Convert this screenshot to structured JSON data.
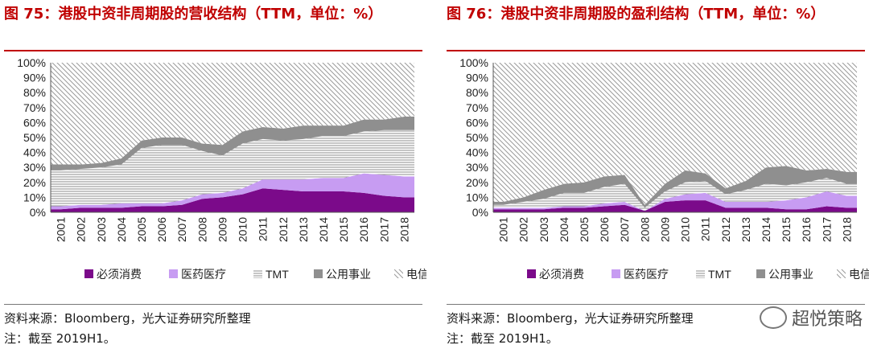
{
  "left": {
    "title": "图 75：港股中资非周期股的营收结构（TTM，单位：%）",
    "source": "资料来源：Bloomberg，光大证券研究所整理",
    "note": "注：截至 2019H1。"
  },
  "right": {
    "title": "图 76：港股中资非周期股的盈利结构（TTM，单位：%）",
    "source": "资料来源：Bloomberg，光大证券研究所整理",
    "note": "注：截至 2019H1。"
  },
  "watermark": "超悦策略",
  "colors": {
    "必须消费": "#7b0a8a",
    "医药医疗": "#c79cf2",
    "TMT": "#a6a6a6",
    "公用事业": "#8f8f8f",
    "电信": "#bdbdbd"
  },
  "chart_data": [
    {
      "type": "area",
      "stacked": true,
      "percent": true,
      "x": [
        "2001",
        "2002",
        "2003",
        "2004",
        "2005",
        "2006",
        "2007",
        "2008",
        "2009",
        "2010",
        "2011",
        "2012",
        "2013",
        "2014",
        "2015",
        "2016",
        "2017",
        "2018"
      ],
      "yticks": [
        "0%",
        "10%",
        "20%",
        "30%",
        "40%",
        "50%",
        "60%",
        "70%",
        "80%",
        "90%",
        "100%"
      ],
      "ylim": [
        0,
        100
      ],
      "legend_position": "bottom",
      "series": [
        {
          "name": "必须消费",
          "pattern": "solid",
          "values": [
            2,
            3,
            3,
            3,
            4,
            4,
            5,
            9,
            10,
            12,
            16,
            15,
            14,
            14,
            14,
            13,
            11,
            10
          ]
        },
        {
          "name": "医药医疗",
          "pattern": "solid",
          "values": [
            2,
            2,
            2,
            3,
            2,
            2,
            3,
            3,
            3,
            4,
            6,
            7,
            8,
            9,
            9,
            13,
            14,
            14
          ]
        },
        {
          "name": "TMT",
          "pattern": "hlines",
          "values": [
            24,
            24,
            25,
            26,
            37,
            39,
            37,
            29,
            25,
            30,
            27,
            26,
            27,
            28,
            28,
            28,
            30,
            31
          ]
        },
        {
          "name": "公用事业",
          "pattern": "solid",
          "values": [
            4,
            3,
            3,
            4,
            5,
            5,
            5,
            5,
            7,
            8,
            8,
            8,
            9,
            7,
            7,
            8,
            7,
            9
          ]
        },
        {
          "name": "电信",
          "pattern": "diag",
          "values": [
            68,
            68,
            67,
            64,
            52,
            50,
            50,
            54,
            55,
            46,
            43,
            44,
            42,
            42,
            42,
            38,
            38,
            36
          ]
        }
      ]
    },
    {
      "type": "area",
      "stacked": true,
      "percent": true,
      "x": [
        "2001",
        "2002",
        "2003",
        "2004",
        "2005",
        "2006",
        "2007",
        "2008",
        "2009",
        "2010",
        "2011",
        "2012",
        "2013",
        "2014",
        "2015",
        "2016",
        "2017",
        "2018"
      ],
      "yticks": [
        "0%",
        "10%",
        "20%",
        "30%",
        "40%",
        "50%",
        "60%",
        "70%",
        "80%",
        "90%",
        "100%"
      ],
      "ylim": [
        0,
        100
      ],
      "legend_position": "bottom",
      "series": [
        {
          "name": "必须消费",
          "pattern": "solid",
          "values": [
            2,
            2,
            2,
            3,
            3,
            4,
            5,
            1,
            7,
            8,
            8,
            3,
            3,
            3,
            2,
            2,
            4,
            3
          ]
        },
        {
          "name": "医药医疗",
          "pattern": "solid",
          "values": [
            1,
            1,
            1,
            1,
            1,
            2,
            2,
            0,
            2,
            4,
            5,
            4,
            4,
            4,
            6,
            8,
            10,
            8
          ]
        },
        {
          "name": "TMT",
          "pattern": "hlines",
          "values": [
            2,
            4,
            6,
            9,
            9,
            11,
            12,
            2,
            5,
            8,
            8,
            5,
            8,
            12,
            10,
            10,
            9,
            8
          ]
        },
        {
          "name": "公用事业",
          "pattern": "solid",
          "values": [
            2,
            3,
            6,
            6,
            7,
            7,
            6,
            2,
            5,
            8,
            5,
            4,
            6,
            11,
            13,
            8,
            6,
            8
          ]
        },
        {
          "name": "电信",
          "pattern": "diag",
          "values": [
            93,
            90,
            85,
            81,
            80,
            76,
            75,
            95,
            81,
            72,
            74,
            84,
            79,
            70,
            69,
            72,
            71,
            73
          ]
        }
      ]
    }
  ]
}
